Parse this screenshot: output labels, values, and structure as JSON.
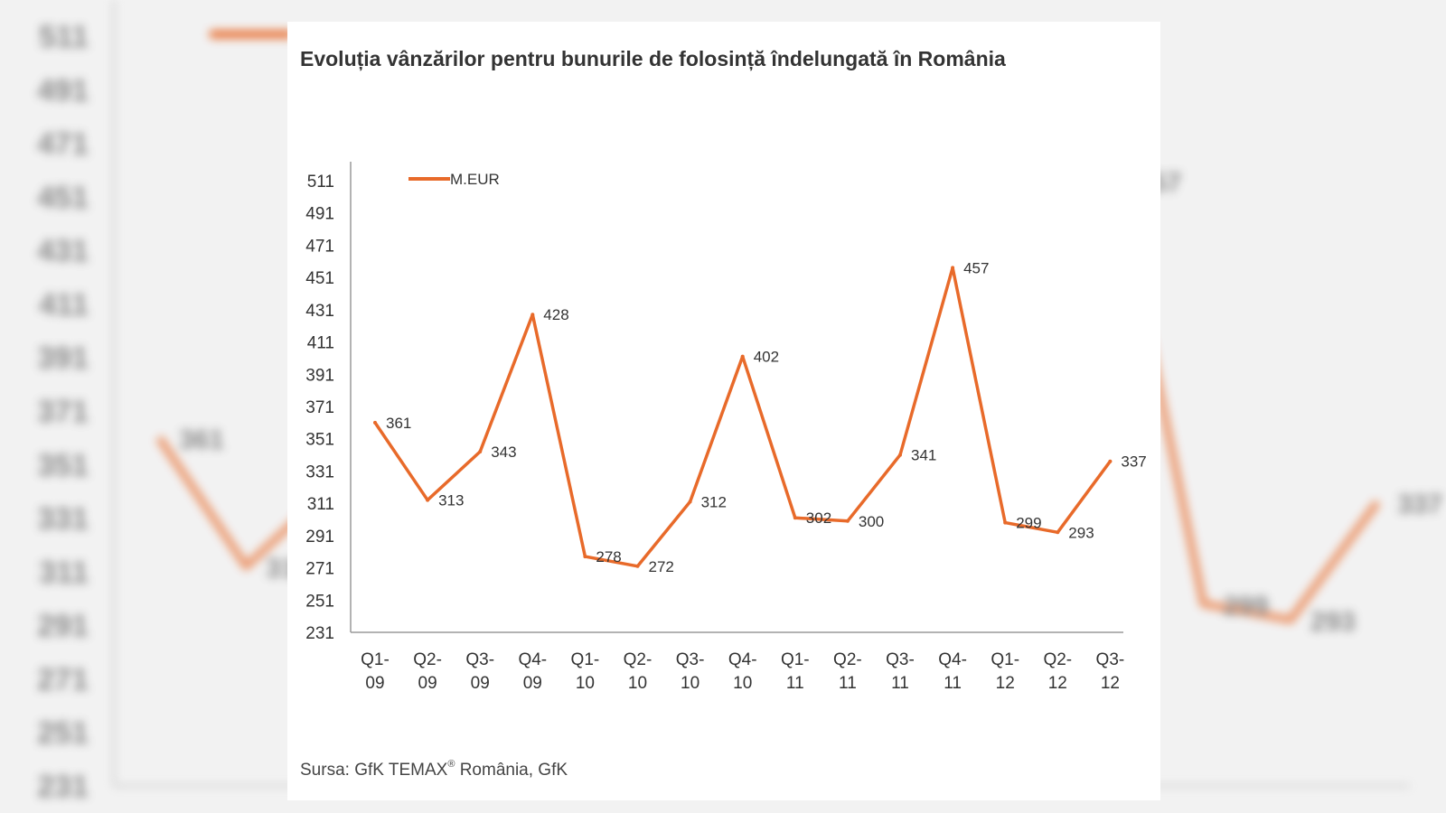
{
  "title": "Evoluția vânzărilor pentru bunurile de folosință îndelungată în România",
  "source": {
    "prefix": "Sursa: GfK TEMAX",
    "mark": "®",
    "suffix": " România, GfK"
  },
  "colors": {
    "series": "#e86a2a",
    "axis": "#9a9a9a",
    "text": "#333333",
    "background": "#f2f2f2"
  },
  "chart_data": {
    "type": "line",
    "categories": [
      [
        "Q1-",
        "09"
      ],
      [
        "Q2-",
        "09"
      ],
      [
        "Q3-",
        "09"
      ],
      [
        "Q4-",
        "09"
      ],
      [
        "Q1-",
        "10"
      ],
      [
        "Q2-",
        "10"
      ],
      [
        "Q3-",
        "10"
      ],
      [
        "Q4-",
        "10"
      ],
      [
        "Q1-",
        "11"
      ],
      [
        "Q2-",
        "11"
      ],
      [
        "Q3-",
        "11"
      ],
      [
        "Q4-",
        "11"
      ],
      [
        "Q1-",
        "12"
      ],
      [
        "Q2-",
        "12"
      ],
      [
        "Q3-",
        "12"
      ]
    ],
    "series": [
      {
        "name": "M.EUR",
        "values": [
          361,
          313,
          343,
          428,
          278,
          272,
          312,
          402,
          302,
          300,
          341,
          457,
          299,
          293,
          337
        ]
      }
    ],
    "y_ticks": [
      511,
      491,
      471,
      451,
      431,
      411,
      391,
      371,
      351,
      331,
      311,
      291,
      271,
      251,
      231
    ],
    "ylim": [
      231,
      511
    ],
    "xlabel": "",
    "ylabel": "",
    "grid": false,
    "legend": "top-left"
  }
}
